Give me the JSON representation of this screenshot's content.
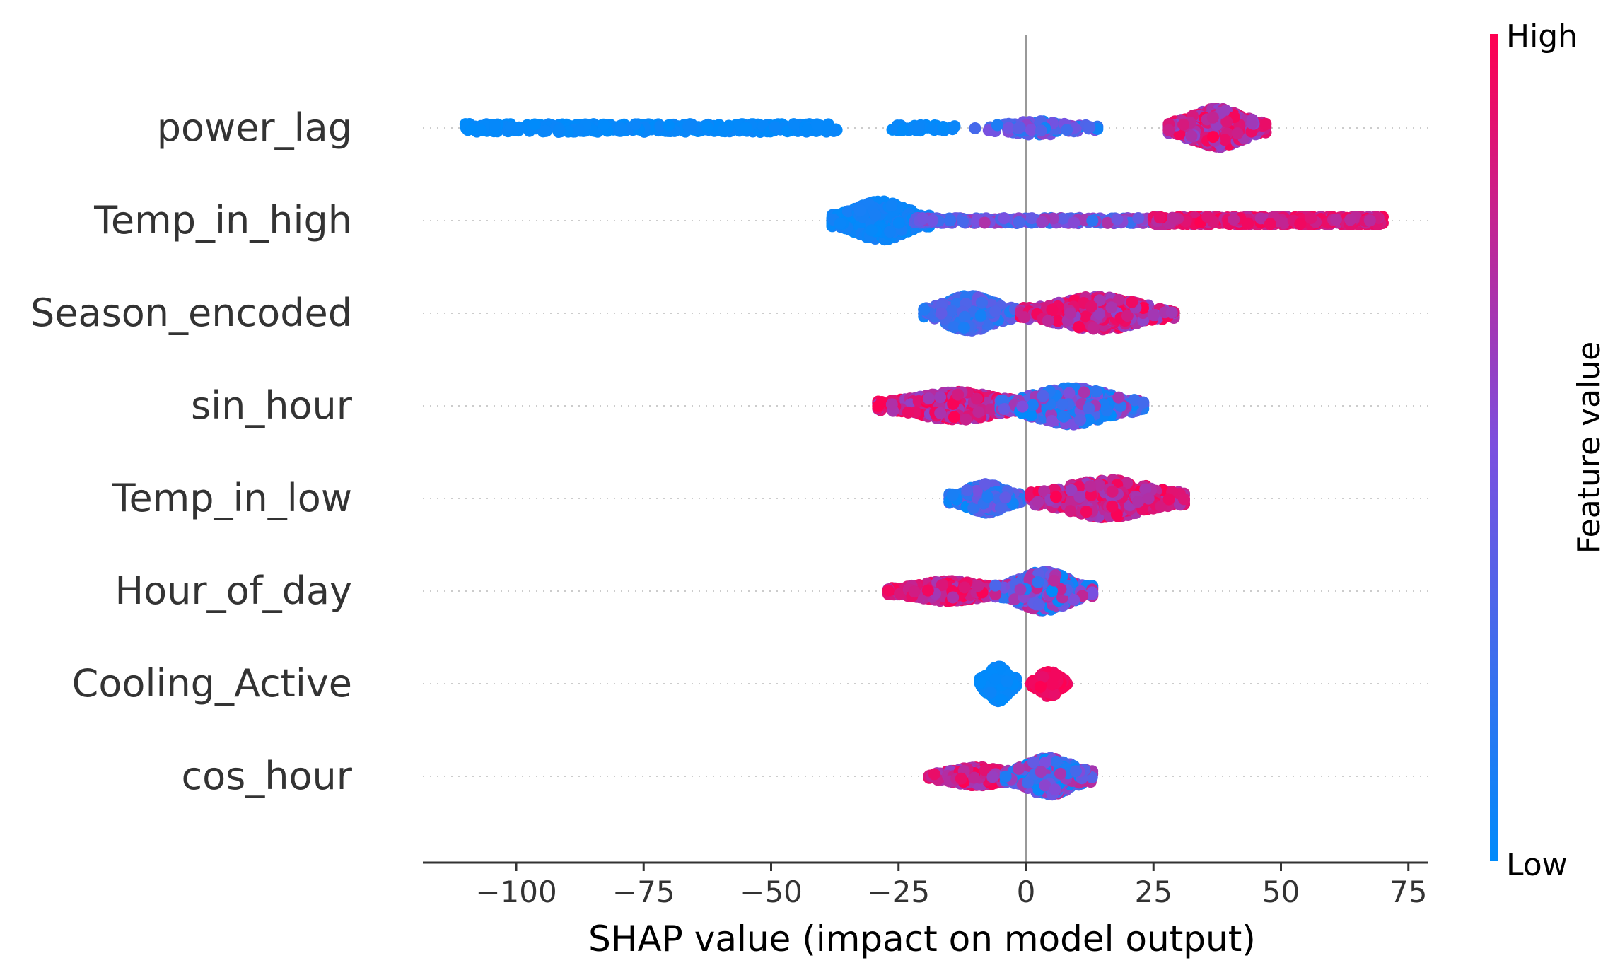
{
  "chart_data": {
    "type": "scatter",
    "subtype": "shap_beeswarm",
    "xlabel": "SHAP value (impact on model output)",
    "xlim": [
      -118,
      77
    ],
    "xticks": [
      -100,
      -75,
      -50,
      -25,
      0,
      25,
      50,
      75
    ],
    "xtick_labels": [
      "−100",
      "−75",
      "−50",
      "−25",
      "0",
      "25",
      "50",
      "75"
    ],
    "colorbar": {
      "title": "Feature value",
      "high_label": "High",
      "low_label": "Low",
      "high_color": "#ff0051",
      "low_color": "#008bfb"
    },
    "features": [
      {
        "name": "power_lag",
        "clusters": [
          {
            "min": -110,
            "max": -37,
            "n": 420,
            "color_lo": 0.0,
            "color_hi": 0.05,
            "shape": "uniform",
            "spread": 0.12
          },
          {
            "min": -27,
            "max": -14,
            "n": 50,
            "color_lo": 0.0,
            "color_hi": 0.05,
            "shape": "uniform",
            "spread": 0.08
          },
          {
            "min": -10,
            "max": 14,
            "n": 120,
            "color_lo": 0.05,
            "color_hi": 0.6,
            "shape": "gauss",
            "spread": 0.15
          },
          {
            "min": 28,
            "max": 47,
            "n": 560,
            "color_lo": 0.55,
            "color_hi": 1.0,
            "shape": "gauss",
            "spread": 0.42
          }
        ]
      },
      {
        "name": "Temp_in_high",
        "clusters": [
          {
            "min": -38,
            "max": -19,
            "n": 520,
            "color_lo": 0.0,
            "color_hi": 0.1,
            "shape": "gauss",
            "spread": 0.42
          },
          {
            "min": -22,
            "max": 25,
            "n": 280,
            "color_lo": 0.15,
            "color_hi": 0.7,
            "shape": "uniform",
            "spread": 0.08
          },
          {
            "min": 25,
            "max": 70,
            "n": 460,
            "color_lo": 0.7,
            "color_hi": 1.0,
            "shape": "uniform",
            "spread": 0.12
          }
        ]
      },
      {
        "name": "Season_encoded",
        "clusters": [
          {
            "min": -20,
            "max": -2,
            "n": 380,
            "color_lo": 0.05,
            "color_hi": 0.45,
            "shape": "gauss",
            "spread": 0.38
          },
          {
            "min": -1,
            "max": 29,
            "n": 520,
            "color_lo": 0.55,
            "color_hi": 1.0,
            "shape": "gauss",
            "spread": 0.36
          }
        ]
      },
      {
        "name": "sin_hour",
        "clusters": [
          {
            "min": -29,
            "max": 2,
            "n": 520,
            "color_lo": 0.55,
            "color_hi": 1.0,
            "shape": "gauss",
            "spread": 0.3
          },
          {
            "min": -5,
            "max": 23,
            "n": 520,
            "color_lo": 0.0,
            "color_hi": 0.7,
            "shape": "gauss",
            "spread": 0.4
          }
        ]
      },
      {
        "name": "Temp_in_low",
        "clusters": [
          {
            "min": -15,
            "max": -1,
            "n": 320,
            "color_lo": 0.0,
            "color_hi": 0.5,
            "shape": "gauss",
            "spread": 0.32
          },
          {
            "min": 1,
            "max": 31,
            "n": 420,
            "color_lo": 0.6,
            "color_hi": 1.0,
            "shape": "gauss",
            "spread": 0.42
          }
        ]
      },
      {
        "name": "Hour_of_day",
        "clusters": [
          {
            "min": -27,
            "max": -3,
            "n": 420,
            "color_lo": 0.65,
            "color_hi": 1.0,
            "shape": "gauss",
            "spread": 0.22
          },
          {
            "min": -6,
            "max": 13,
            "n": 600,
            "color_lo": 0.0,
            "color_hi": 0.8,
            "shape": "gauss",
            "spread": 0.42
          }
        ]
      },
      {
        "name": "Cooling_Active",
        "clusters": [
          {
            "min": -9,
            "max": -2,
            "n": 260,
            "color_lo": 0.0,
            "color_hi": 0.05,
            "shape": "gauss",
            "spread": 0.38
          },
          {
            "min": 1,
            "max": 8,
            "n": 200,
            "color_lo": 0.9,
            "color_hi": 1.0,
            "shape": "gauss",
            "spread": 0.28
          }
        ]
      },
      {
        "name": "cos_hour",
        "clusters": [
          {
            "min": -19,
            "max": 0,
            "n": 400,
            "color_lo": 0.6,
            "color_hi": 1.0,
            "shape": "gauss",
            "spread": 0.2
          },
          {
            "min": -4,
            "max": 13,
            "n": 560,
            "color_lo": 0.0,
            "color_hi": 0.75,
            "shape": "gauss",
            "spread": 0.4
          }
        ]
      }
    ]
  }
}
